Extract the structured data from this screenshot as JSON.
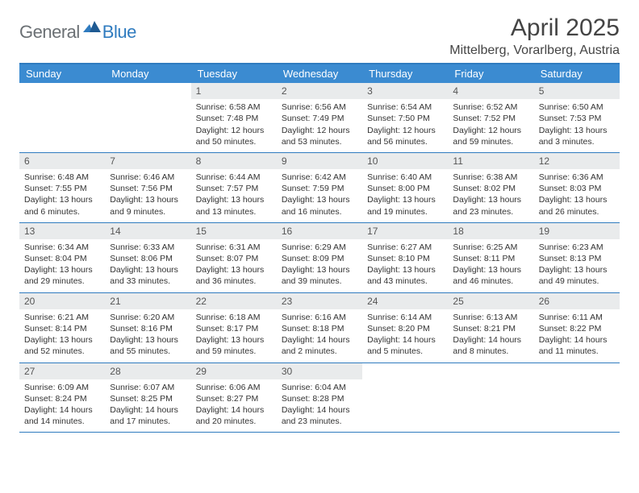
{
  "logo": {
    "general": "General",
    "blue": "Blue"
  },
  "title": "April 2025",
  "location": "Mittelberg, Vorarlberg, Austria",
  "colors": {
    "header_bg": "#3b8bd1",
    "rule": "#2f7bbf",
    "daynum_bg": "#e9ebec",
    "text": "#333333",
    "logo_gray": "#6b7074",
    "logo_blue": "#2f7bbf"
  },
  "weekdays": [
    "Sunday",
    "Monday",
    "Tuesday",
    "Wednesday",
    "Thursday",
    "Friday",
    "Saturday"
  ],
  "weeks": [
    [
      null,
      null,
      {
        "n": "1",
        "sr": "6:58 AM",
        "ss": "7:48 PM",
        "dl": "12 hours and 50 minutes."
      },
      {
        "n": "2",
        "sr": "6:56 AM",
        "ss": "7:49 PM",
        "dl": "12 hours and 53 minutes."
      },
      {
        "n": "3",
        "sr": "6:54 AM",
        "ss": "7:50 PM",
        "dl": "12 hours and 56 minutes."
      },
      {
        "n": "4",
        "sr": "6:52 AM",
        "ss": "7:52 PM",
        "dl": "12 hours and 59 minutes."
      },
      {
        "n": "5",
        "sr": "6:50 AM",
        "ss": "7:53 PM",
        "dl": "13 hours and 3 minutes."
      }
    ],
    [
      {
        "n": "6",
        "sr": "6:48 AM",
        "ss": "7:55 PM",
        "dl": "13 hours and 6 minutes."
      },
      {
        "n": "7",
        "sr": "6:46 AM",
        "ss": "7:56 PM",
        "dl": "13 hours and 9 minutes."
      },
      {
        "n": "8",
        "sr": "6:44 AM",
        "ss": "7:57 PM",
        "dl": "13 hours and 13 minutes."
      },
      {
        "n": "9",
        "sr": "6:42 AM",
        "ss": "7:59 PM",
        "dl": "13 hours and 16 minutes."
      },
      {
        "n": "10",
        "sr": "6:40 AM",
        "ss": "8:00 PM",
        "dl": "13 hours and 19 minutes."
      },
      {
        "n": "11",
        "sr": "6:38 AM",
        "ss": "8:02 PM",
        "dl": "13 hours and 23 minutes."
      },
      {
        "n": "12",
        "sr": "6:36 AM",
        "ss": "8:03 PM",
        "dl": "13 hours and 26 minutes."
      }
    ],
    [
      {
        "n": "13",
        "sr": "6:34 AM",
        "ss": "8:04 PM",
        "dl": "13 hours and 29 minutes."
      },
      {
        "n": "14",
        "sr": "6:33 AM",
        "ss": "8:06 PM",
        "dl": "13 hours and 33 minutes."
      },
      {
        "n": "15",
        "sr": "6:31 AM",
        "ss": "8:07 PM",
        "dl": "13 hours and 36 minutes."
      },
      {
        "n": "16",
        "sr": "6:29 AM",
        "ss": "8:09 PM",
        "dl": "13 hours and 39 minutes."
      },
      {
        "n": "17",
        "sr": "6:27 AM",
        "ss": "8:10 PM",
        "dl": "13 hours and 43 minutes."
      },
      {
        "n": "18",
        "sr": "6:25 AM",
        "ss": "8:11 PM",
        "dl": "13 hours and 46 minutes."
      },
      {
        "n": "19",
        "sr": "6:23 AM",
        "ss": "8:13 PM",
        "dl": "13 hours and 49 minutes."
      }
    ],
    [
      {
        "n": "20",
        "sr": "6:21 AM",
        "ss": "8:14 PM",
        "dl": "13 hours and 52 minutes."
      },
      {
        "n": "21",
        "sr": "6:20 AM",
        "ss": "8:16 PM",
        "dl": "13 hours and 55 minutes."
      },
      {
        "n": "22",
        "sr": "6:18 AM",
        "ss": "8:17 PM",
        "dl": "13 hours and 59 minutes."
      },
      {
        "n": "23",
        "sr": "6:16 AM",
        "ss": "8:18 PM",
        "dl": "14 hours and 2 minutes."
      },
      {
        "n": "24",
        "sr": "6:14 AM",
        "ss": "8:20 PM",
        "dl": "14 hours and 5 minutes."
      },
      {
        "n": "25",
        "sr": "6:13 AM",
        "ss": "8:21 PM",
        "dl": "14 hours and 8 minutes."
      },
      {
        "n": "26",
        "sr": "6:11 AM",
        "ss": "8:22 PM",
        "dl": "14 hours and 11 minutes."
      }
    ],
    [
      {
        "n": "27",
        "sr": "6:09 AM",
        "ss": "8:24 PM",
        "dl": "14 hours and 14 minutes."
      },
      {
        "n": "28",
        "sr": "6:07 AM",
        "ss": "8:25 PM",
        "dl": "14 hours and 17 minutes."
      },
      {
        "n": "29",
        "sr": "6:06 AM",
        "ss": "8:27 PM",
        "dl": "14 hours and 20 minutes."
      },
      {
        "n": "30",
        "sr": "6:04 AM",
        "ss": "8:28 PM",
        "dl": "14 hours and 23 minutes."
      },
      null,
      null,
      null
    ]
  ],
  "labels": {
    "sunrise": "Sunrise: ",
    "sunset": "Sunset: ",
    "daylight": "Daylight: "
  }
}
